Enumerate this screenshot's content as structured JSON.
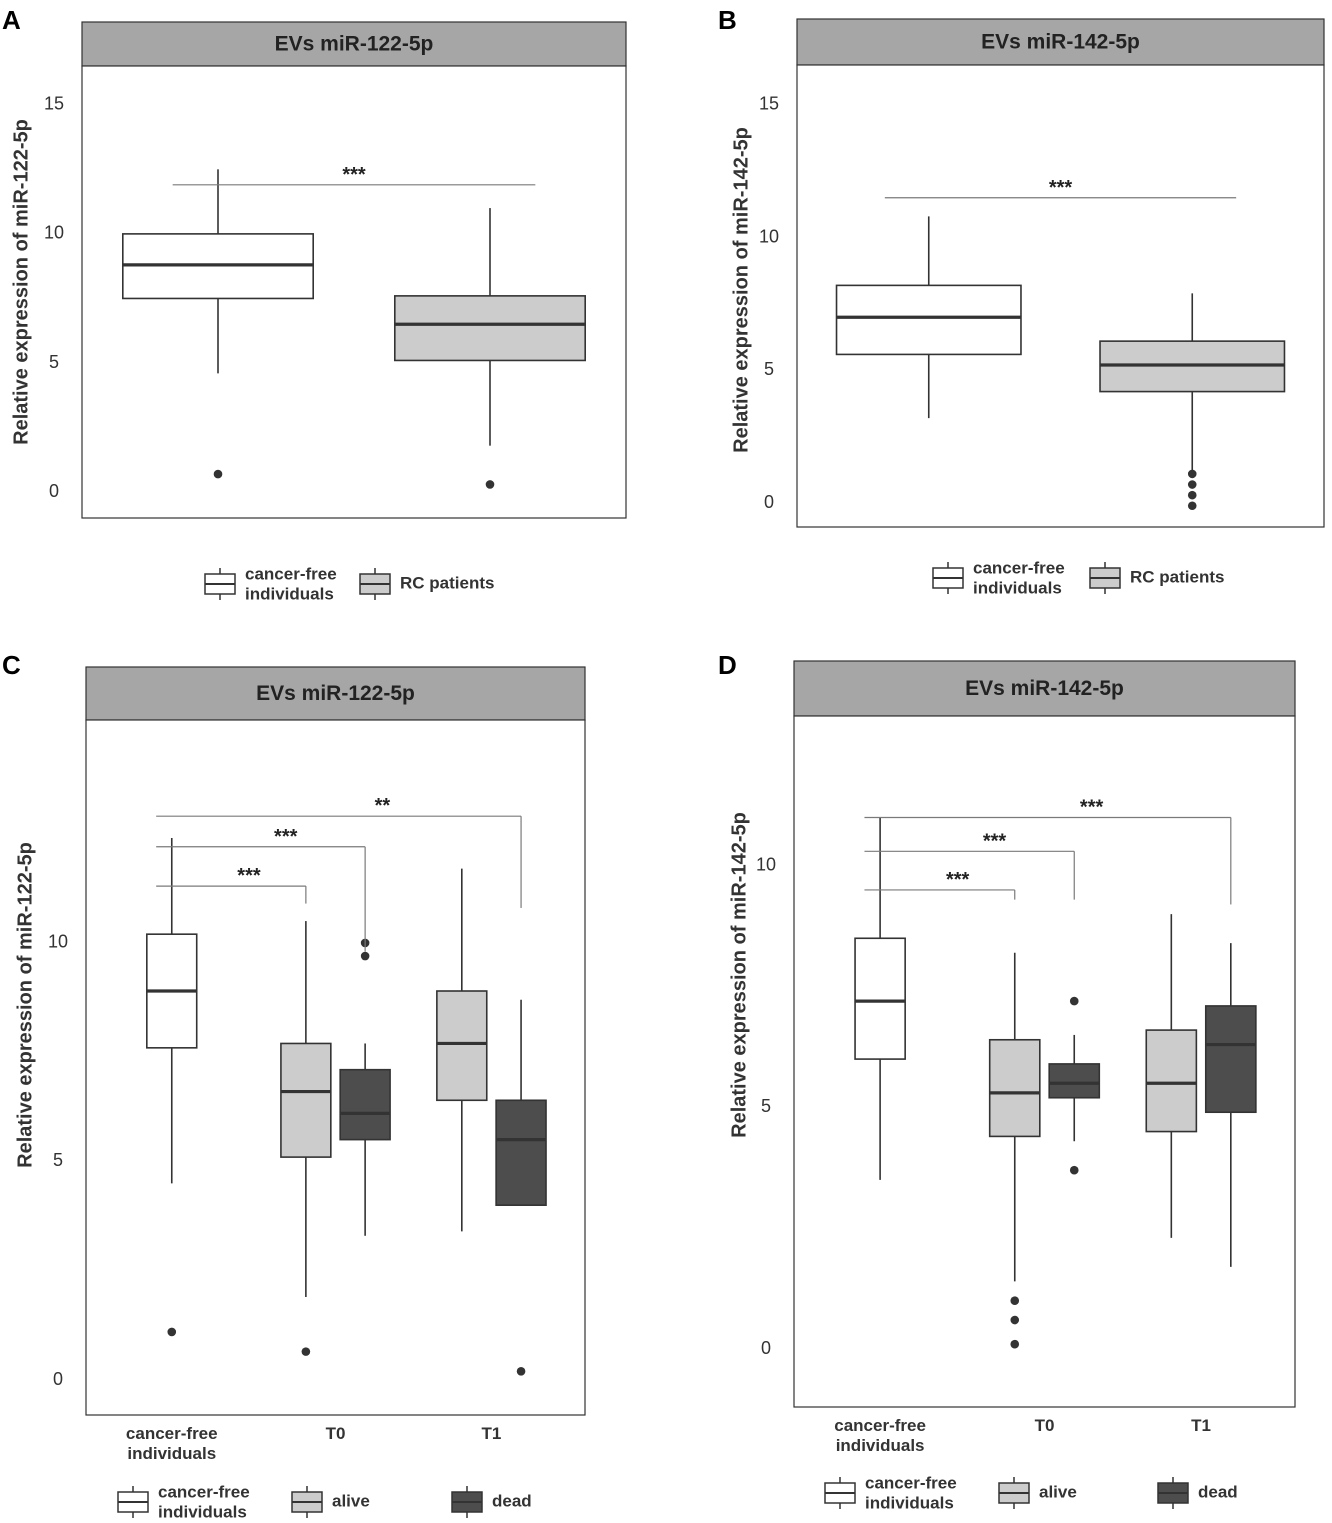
{
  "colors": {
    "white_box": "#ffffff",
    "light_box": "#cccccc",
    "dark_box": "#4d4d4d",
    "line": "#333333",
    "strip": "#a6a6a6",
    "sig_line": "#7a7a7a"
  },
  "chart_data": [
    {
      "panel": "A",
      "type": "box",
      "title": "EVs miR-122-5p",
      "ylabel": "Relative expression of miR-122-5p",
      "xlabel": "",
      "yticks": [
        0,
        5,
        10,
        15
      ],
      "ylim": [
        -1,
        16.5
      ],
      "categories": [],
      "legend": [
        {
          "label_lines": [
            "cancer-free",
            "individuals"
          ],
          "color": "white"
        },
        {
          "label_lines": [
            "RC patients"
          ],
          "color": "light"
        }
      ],
      "boxes": [
        {
          "group": "cancer-free individuals",
          "color": "white",
          "pos": 1.25,
          "min": 4.6,
          "q1": 7.5,
          "median": 8.8,
          "q3": 10.0,
          "max": 12.5,
          "outliers": [
            0.7
          ]
        },
        {
          "group": "RC patients",
          "color": "light",
          "pos": 2.75,
          "min": 1.8,
          "q1": 5.1,
          "median": 6.5,
          "q3": 7.6,
          "max": 11.0,
          "outliers": [
            0.3
          ]
        }
      ],
      "xrange": [
        0.5,
        3.5
      ],
      "sig": [
        {
          "label": "***",
          "x1": 1.0,
          "x2": 3.0,
          "y": 11.9,
          "drop1": null,
          "drop2": null
        }
      ]
    },
    {
      "panel": "B",
      "type": "box",
      "title": "EVs miR-142-5p",
      "ylabel": "Relative expression of miR-142-5p",
      "xlabel": "",
      "yticks": [
        0,
        5,
        10,
        15
      ],
      "ylim": [
        -0.9,
        16.5
      ],
      "categories": [],
      "legend": [
        {
          "label_lines": [
            "cancer-free",
            "individuals"
          ],
          "color": "white"
        },
        {
          "label_lines": [
            "RC patients"
          ],
          "color": "light"
        }
      ],
      "boxes": [
        {
          "group": "cancer-free individuals",
          "color": "white",
          "pos": 1.25,
          "min": 3.2,
          "q1": 5.6,
          "median": 7.0,
          "q3": 8.2,
          "max": 10.8,
          "outliers": []
        },
        {
          "group": "RC patients",
          "color": "light",
          "pos": 2.75,
          "min": 1.0,
          "q1": 4.2,
          "median": 5.2,
          "q3": 6.1,
          "max": 7.9,
          "outliers": [
            1.1,
            0.7,
            0.3,
            -0.1
          ]
        }
      ],
      "xrange": [
        0.5,
        3.5
      ],
      "sig": [
        {
          "label": "***",
          "x1": 1.0,
          "x2": 3.0,
          "y": 11.5,
          "drop1": null,
          "drop2": null
        }
      ]
    },
    {
      "panel": "C",
      "type": "box",
      "title": "EVs miR-122-5p",
      "ylabel": "Relative expression of miR-122-5p",
      "xlabel": "",
      "yticks": [
        0,
        5,
        10
      ],
      "ylim": [
        -0.8,
        15.1
      ],
      "categories": [
        {
          "lines": [
            "cancer-free",
            "individuals"
          ],
          "pos": 1
        },
        {
          "lines": [
            "T0"
          ],
          "pos": 2
        },
        {
          "lines": [
            "T1"
          ],
          "pos": 3
        }
      ],
      "legend": [
        {
          "label_lines": [
            "cancer-free",
            "individuals"
          ],
          "color": "white"
        },
        {
          "label_lines": [
            "alive"
          ],
          "color": "light"
        },
        {
          "label_lines": [
            "dead"
          ],
          "color": "dark"
        }
      ],
      "boxes": [
        {
          "group": "cancer-free individuals",
          "color": "white",
          "pos": 0.95,
          "min": 4.5,
          "q1": 7.6,
          "median": 8.9,
          "q3": 10.2,
          "max": 12.4,
          "outliers": [
            1.1
          ]
        },
        {
          "group": "T0 alive",
          "color": "light",
          "pos": 1.81,
          "min": 1.9,
          "q1": 5.1,
          "median": 6.6,
          "q3": 7.7,
          "max": 10.5,
          "outliers": [
            0.65
          ]
        },
        {
          "group": "T0 dead",
          "color": "dark",
          "pos": 2.19,
          "min": 3.3,
          "q1": 5.5,
          "median": 6.1,
          "q3": 7.1,
          "max": 7.7,
          "outliers": [
            10.0,
            9.7
          ]
        },
        {
          "group": "T1 alive",
          "color": "light",
          "pos": 2.81,
          "min": 3.4,
          "q1": 6.4,
          "median": 7.7,
          "q3": 8.9,
          "max": 11.7,
          "outliers": []
        },
        {
          "group": "T1 dead",
          "color": "dark",
          "pos": 3.19,
          "min": 4.0,
          "q1": 4.0,
          "median": 5.5,
          "q3": 6.4,
          "max": 8.7,
          "outliers": [
            0.2
          ]
        }
      ],
      "xrange": [
        0.4,
        3.6
      ],
      "sig": [
        {
          "label": "***",
          "x1": 0.85,
          "x2": 1.81,
          "y": 11.3,
          "drop1": null,
          "drop2": 10.9
        },
        {
          "label": "***",
          "x1": 0.85,
          "x2": 2.19,
          "y": 12.2,
          "drop1": null,
          "drop2": 9.8
        },
        {
          "label": "**",
          "x1": 0.85,
          "x2": 3.19,
          "y": 12.9,
          "drop1": null,
          "drop2": 10.8
        }
      ]
    },
    {
      "panel": "D",
      "type": "box",
      "title": "EVs miR-142-5p",
      "ylabel": "Relative expression of miR-142-5p",
      "xlabel": "",
      "yticks": [
        0,
        5,
        10
      ],
      "ylim": [
        -1.2,
        13.1
      ],
      "categories": [
        {
          "lines": [
            "cancer-free",
            "individuals"
          ],
          "pos": 1
        },
        {
          "lines": [
            "T0"
          ],
          "pos": 2
        },
        {
          "lines": [
            "T1"
          ],
          "pos": 3
        }
      ],
      "legend": [
        {
          "label_lines": [
            "cancer-free",
            "individuals"
          ],
          "color": "white"
        },
        {
          "label_lines": [
            "alive"
          ],
          "color": "light"
        },
        {
          "label_lines": [
            "dead"
          ],
          "color": "dark"
        }
      ],
      "boxes": [
        {
          "group": "cancer-free individuals",
          "color": "white",
          "pos": 0.95,
          "min": 3.5,
          "q1": 6.0,
          "median": 7.2,
          "q3": 8.5,
          "max": 11.0,
          "outliers": []
        },
        {
          "group": "T0 alive",
          "color": "light",
          "pos": 1.81,
          "min": 1.4,
          "q1": 4.4,
          "median": 5.3,
          "q3": 6.4,
          "max": 8.2,
          "outliers": [
            1.0,
            0.6,
            0.1
          ]
        },
        {
          "group": "T0 dead",
          "color": "dark",
          "pos": 2.19,
          "min": 4.3,
          "q1": 5.2,
          "median": 5.5,
          "q3": 5.9,
          "max": 6.5,
          "outliers": [
            7.2,
            3.7
          ]
        },
        {
          "group": "T1 alive",
          "color": "light",
          "pos": 2.81,
          "min": 2.3,
          "q1": 4.5,
          "median": 5.5,
          "q3": 6.6,
          "max": 9.0,
          "outliers": []
        },
        {
          "group": "T1 dead",
          "color": "dark",
          "pos": 3.19,
          "min": 1.7,
          "q1": 4.9,
          "median": 6.3,
          "q3": 7.1,
          "max": 8.4,
          "outliers": []
        }
      ],
      "xrange": [
        0.4,
        3.6
      ],
      "sig": [
        {
          "label": "***",
          "x1": 0.85,
          "x2": 1.81,
          "y": 9.5,
          "drop1": null,
          "drop2": 9.3
        },
        {
          "label": "***",
          "x1": 0.85,
          "x2": 2.19,
          "y": 10.3,
          "drop1": null,
          "drop2": 9.3
        },
        {
          "label": "***",
          "x1": 0.85,
          "x2": 3.19,
          "y": 11.0,
          "drop1": null,
          "drop2": 9.2
        }
      ]
    }
  ]
}
